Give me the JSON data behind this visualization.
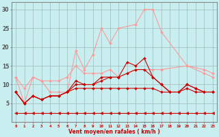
{
  "xlabel": "Vent moyen/en rafales ( km/h )",
  "xlim": [
    -0.5,
    23.5
  ],
  "ylim": [
    0,
    32
  ],
  "yticks": [
    5,
    10,
    15,
    20,
    25,
    30
  ],
  "xticks": [
    0,
    1,
    2,
    3,
    4,
    5,
    6,
    7,
    8,
    9,
    10,
    11,
    12,
    13,
    14,
    15,
    16,
    17,
    18,
    19,
    20,
    21,
    22,
    23
  ],
  "background_color": "#c8eef0",
  "grid_color": "#a0b8b8",
  "series": [
    {
      "x": [
        0,
        1,
        2,
        3,
        4,
        5,
        6,
        7,
        8,
        9,
        10,
        11,
        12,
        14,
        15,
        16,
        17,
        20,
        22,
        23
      ],
      "y": [
        12,
        5,
        12,
        11,
        8,
        8,
        8,
        19,
        14,
        18,
        25,
        21,
        25,
        26,
        30,
        30,
        24,
        15,
        14,
        13
      ],
      "color": "#ff9999",
      "marker": "D",
      "markersize": 2,
      "linewidth": 0.8
    },
    {
      "x": [
        0,
        1,
        2,
        3,
        4,
        5,
        6,
        7,
        8,
        9,
        10,
        11,
        12,
        13,
        14,
        15,
        16,
        17,
        20,
        22,
        23
      ],
      "y": [
        12,
        9,
        12,
        11,
        11,
        11,
        12,
        15,
        13,
        13,
        13,
        14,
        12,
        13,
        14,
        14,
        14,
        14,
        15,
        13,
        12
      ],
      "color": "#ff9999",
      "marker": "D",
      "markersize": 2,
      "linewidth": 0.8
    },
    {
      "x": [
        0,
        1,
        2,
        3,
        4,
        5,
        6,
        7,
        8,
        9,
        10,
        11,
        12,
        13,
        14,
        15,
        16,
        17,
        18,
        19,
        20,
        21,
        22,
        23
      ],
      "y": [
        8,
        5,
        7,
        6,
        7,
        7,
        8,
        11,
        10,
        10,
        12,
        12,
        12,
        16,
        15,
        17,
        12,
        10,
        8,
        8,
        10,
        9,
        8,
        8
      ],
      "color": "#cc0000",
      "marker": "D",
      "markersize": 2,
      "linewidth": 0.8
    },
    {
      "x": [
        0,
        1,
        2,
        3,
        4,
        5,
        6,
        7,
        8,
        9,
        10,
        11,
        12,
        13,
        14,
        15,
        16,
        17,
        18,
        19,
        20,
        21,
        22,
        23
      ],
      "y": [
        8,
        5,
        7,
        6,
        7,
        7,
        8,
        10,
        10,
        10,
        11,
        12,
        12,
        13,
        14,
        14,
        12,
        10,
        8,
        8,
        10,
        9,
        8,
        8
      ],
      "color": "#cc0000",
      "marker": "D",
      "markersize": 2,
      "linewidth": 0.8
    },
    {
      "x": [
        0,
        1,
        2,
        3,
        4,
        5,
        6,
        7,
        8,
        9,
        10,
        11,
        12,
        13,
        14,
        15,
        16,
        17,
        18,
        19,
        20,
        21,
        22,
        23
      ],
      "y": [
        8,
        5,
        7,
        6,
        7,
        7,
        8,
        9,
        9,
        9,
        9,
        9,
        9,
        9,
        9,
        9,
        9,
        8,
        8,
        8,
        9,
        8,
        8,
        8
      ],
      "color": "#cc0000",
      "marker": "D",
      "markersize": 2,
      "linewidth": 0.8
    },
    {
      "x": [
        0,
        1,
        2,
        3,
        4,
        5,
        6,
        7,
        8,
        9,
        10,
        11,
        12,
        13,
        14,
        15,
        16,
        17,
        18,
        19,
        20,
        21,
        22,
        23
      ],
      "y": [
        2.5,
        2.5,
        2.5,
        2.5,
        2.5,
        2.5,
        2.5,
        2.5,
        2.5,
        2.5,
        2.5,
        2.5,
        2.5,
        2.5,
        2.5,
        2.5,
        2.5,
        2.5,
        2.5,
        2.5,
        2.5,
        2.5,
        2.5,
        2.5
      ],
      "color": "#cc0000",
      "marker": "<",
      "markersize": 3,
      "linewidth": 0.8,
      "linestyle": "-"
    }
  ]
}
